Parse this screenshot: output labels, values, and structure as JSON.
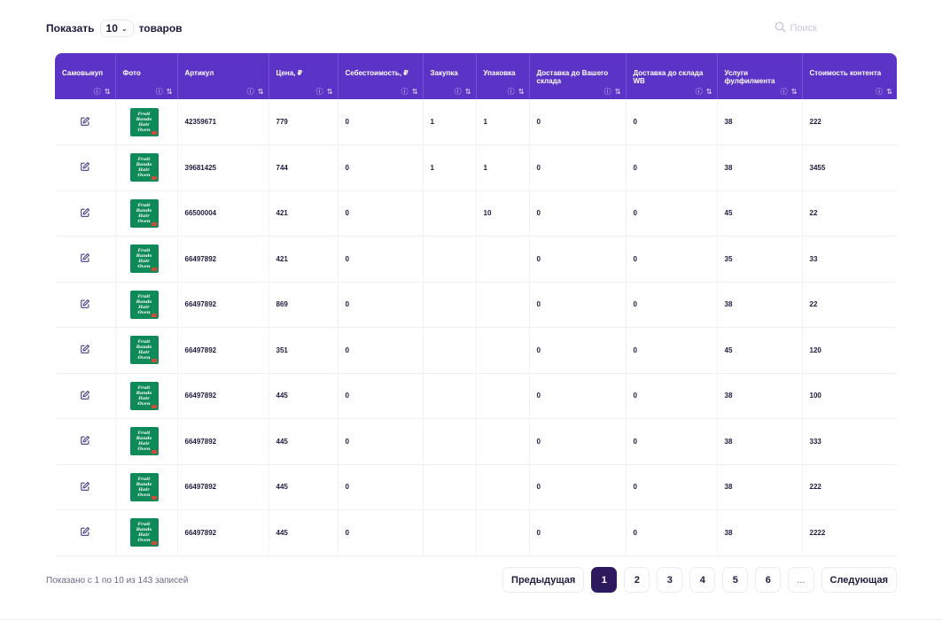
{
  "top": {
    "show_label": "Показать",
    "page_size": "10",
    "items_label": "товаров",
    "search_placeholder": "Поиск"
  },
  "table": {
    "headers": [
      {
        "label": "Самовыкуп",
        "icons": "ⓘ ⇅"
      },
      {
        "label": "Фото",
        "icons": "ⓘ ⇅"
      },
      {
        "label": "Артикул",
        "icons": "ⓘ ⇅"
      },
      {
        "label": "Цена, ₽",
        "icons": "ⓘ ⇅"
      },
      {
        "label": "Себестоимость, ₽",
        "icons": "ⓘ ⇅"
      },
      {
        "label": "Закупка",
        "icons": "ⓘ ⇅"
      },
      {
        "label": "Упаковка",
        "icons": "ⓘ ⇅"
      },
      {
        "label": "Доставка до Вашего склада",
        "icons": "ⓘ ⇅"
      },
      {
        "label": "Доставка до склада WB",
        "icons": "ⓘ ⇅"
      },
      {
        "label": "Услуги фулфилмента",
        "icons": "ⓘ ⇅"
      },
      {
        "label": "Стоимость контента",
        "icons": "ⓘ ⇅"
      }
    ],
    "thumb_text": "Fruit Bands Hair Oven",
    "rows": [
      {
        "article": "42359671",
        "price": "779",
        "cost": "0",
        "purchase": "1",
        "packing": "1",
        "delivery_own": "0",
        "delivery_wb": "0",
        "fulfillment": "38",
        "content": "222"
      },
      {
        "article": "39681425",
        "price": "744",
        "cost": "0",
        "purchase": "1",
        "packing": "1",
        "delivery_own": "0",
        "delivery_wb": "0",
        "fulfillment": "38",
        "content": "3455"
      },
      {
        "article": "66500004",
        "price": "421",
        "cost": "0",
        "purchase": "",
        "packing": "10",
        "delivery_own": "0",
        "delivery_wb": "0",
        "fulfillment": "45",
        "content": "22"
      },
      {
        "article": "66497892",
        "price": "421",
        "cost": "0",
        "purchase": "",
        "packing": "",
        "delivery_own": "0",
        "delivery_wb": "0",
        "fulfillment": "35",
        "content": "33"
      },
      {
        "article": "66497892",
        "price": "869",
        "cost": "0",
        "purchase": "",
        "packing": "",
        "delivery_own": "0",
        "delivery_wb": "0",
        "fulfillment": "38",
        "content": "22"
      },
      {
        "article": "66497892",
        "price": "351",
        "cost": "0",
        "purchase": "",
        "packing": "",
        "delivery_own": "0",
        "delivery_wb": "0",
        "fulfillment": "45",
        "content": "120"
      },
      {
        "article": "66497892",
        "price": "445",
        "cost": "0",
        "purchase": "",
        "packing": "",
        "delivery_own": "0",
        "delivery_wb": "0",
        "fulfillment": "38",
        "content": "100"
      },
      {
        "article": "66497892",
        "price": "445",
        "cost": "0",
        "purchase": "",
        "packing": "",
        "delivery_own": "0",
        "delivery_wb": "0",
        "fulfillment": "38",
        "content": "333"
      },
      {
        "article": "66497892",
        "price": "445",
        "cost": "0",
        "purchase": "",
        "packing": "",
        "delivery_own": "0",
        "delivery_wb": "0",
        "fulfillment": "38",
        "content": "222"
      },
      {
        "article": "66497892",
        "price": "445",
        "cost": "0",
        "purchase": "",
        "packing": "",
        "delivery_own": "0",
        "delivery_wb": "0",
        "fulfillment": "38",
        "content": "2222"
      }
    ]
  },
  "footer": {
    "info": "Показано с 1 по 10 из 143 записей",
    "prev_label": "Предыдущая",
    "next_label": "Следующая",
    "pages": [
      "1",
      "2",
      "3",
      "4",
      "5",
      "6"
    ],
    "current_page": "1",
    "ellipsis": "..."
  },
  "colors": {
    "header_bg": "#5b33c7",
    "active_page": "#2d1a5e",
    "thumb_green": "#0e8a58"
  }
}
